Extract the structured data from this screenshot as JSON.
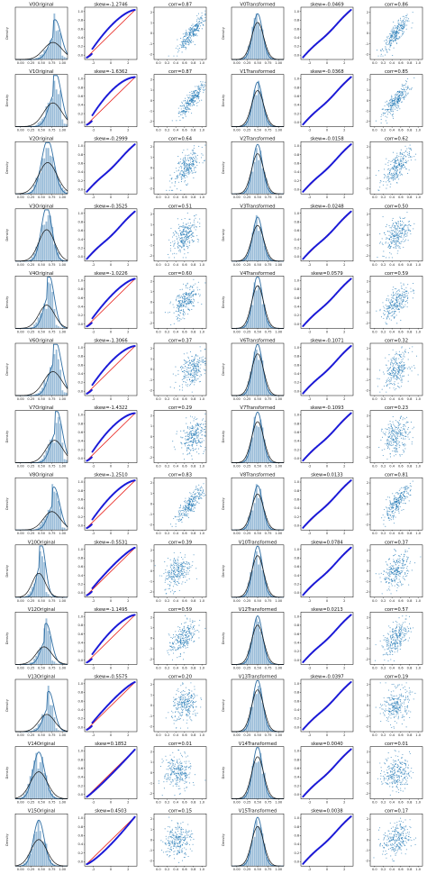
{
  "figure": {
    "rows": [
      {
        "var": "V0",
        "orig_title": "V0Original",
        "orig_skew": "skew=-1.2746",
        "orig_corr": "corr=0.87",
        "trans_title": "V0Transformed",
        "trans_skew": "skew=-0.0469",
        "trans_corr": "corr=0.86",
        "orig_center": 0.72,
        "orig_spread": 0.14,
        "orig_skew_value": -1.2746,
        "orig_corr_value": 0.87,
        "trans_skew_value": -0.0469,
        "trans_corr_value": 0.86
      },
      {
        "var": "V1",
        "orig_title": "V1Original",
        "orig_skew": "skew=-1.6362",
        "orig_corr": "corr=0.87",
        "trans_title": "V1Transformed",
        "trans_skew": "skew=-0.0368",
        "trans_corr": "corr=0.85",
        "orig_center": 0.72,
        "orig_spread": 0.14,
        "orig_skew_value": -1.6362,
        "orig_corr_value": 0.87,
        "trans_skew_value": -0.0368,
        "trans_corr_value": 0.85
      },
      {
        "var": "V2",
        "orig_title": "V2Original",
        "orig_skew": "skew=-0.2999",
        "orig_corr": "corr=0.64",
        "trans_title": "V2Transformed",
        "trans_skew": "skew=-0.0158",
        "trans_corr": "corr=0.62",
        "orig_center": 0.62,
        "orig_spread": 0.14,
        "orig_skew_value": -0.2999,
        "orig_corr_value": 0.64,
        "trans_skew_value": -0.0158,
        "trans_corr_value": 0.62
      },
      {
        "var": "V3",
        "orig_title": "V3Original",
        "orig_skew": "skew=-0.3525",
        "orig_corr": "corr=0.51",
        "trans_title": "V3Transformed",
        "trans_skew": "skew=-0.0248",
        "trans_corr": "corr=0.50",
        "orig_center": 0.6,
        "orig_spread": 0.12,
        "orig_skew_value": -0.3525,
        "orig_corr_value": 0.51,
        "trans_skew_value": -0.0248,
        "trans_corr_value": 0.5
      },
      {
        "var": "V4",
        "orig_title": "V4Original",
        "orig_skew": "skew=-1.0226",
        "orig_corr": "corr=0.60",
        "trans_title": "V4Transformed",
        "trans_skew": "skew=0.0579",
        "trans_corr": "corr=0.59",
        "orig_center": 0.6,
        "orig_spread": 0.12,
        "orig_skew_value": -1.0226,
        "orig_corr_value": 0.6,
        "trans_skew_value": 0.0579,
        "trans_corr_value": 0.59
      },
      {
        "var": "V6",
        "orig_title": "V6Original",
        "orig_skew": "skew=-1.3066",
        "orig_corr": "corr=0.37",
        "trans_title": "V6Transformed",
        "trans_skew": "skew=-0.1071",
        "trans_corr": "corr=0.32",
        "orig_center": 0.72,
        "orig_spread": 0.14,
        "orig_skew_value": -1.3066,
        "orig_corr_value": 0.37,
        "trans_skew_value": -0.1071,
        "trans_corr_value": 0.32
      },
      {
        "var": "V7",
        "orig_title": "V7Original",
        "orig_skew": "skew=-1.4322",
        "orig_corr": "corr=0.29",
        "trans_title": "V7Transformed",
        "trans_skew": "skew=-0.1093",
        "trans_corr": "corr=0.23",
        "orig_center": 0.75,
        "orig_spread": 0.13,
        "orig_skew_value": -1.4322,
        "orig_corr_value": 0.29,
        "trans_skew_value": -0.1093,
        "trans_corr_value": 0.23
      },
      {
        "var": "V8",
        "orig_title": "V8Original",
        "orig_skew": "skew=-1.2510",
        "orig_corr": "corr=0.83",
        "trans_title": "V8Transformed",
        "trans_skew": "skew=0.0133",
        "trans_corr": "corr=0.81",
        "orig_center": 0.7,
        "orig_spread": 0.13,
        "orig_skew_value": -1.251,
        "orig_corr_value": 0.83,
        "trans_skew_value": 0.0133,
        "trans_corr_value": 0.81
      },
      {
        "var": "V10",
        "orig_title": "V10Original",
        "orig_skew": "skew=-0.5531",
        "orig_corr": "corr=0.39",
        "trans_title": "V10Transformed",
        "trans_skew": "skew=0.0784",
        "trans_corr": "corr=0.37",
        "orig_center": 0.45,
        "orig_spread": 0.1,
        "orig_skew_value": -0.5531,
        "orig_corr_value": 0.39,
        "trans_skew_value": 0.0784,
        "trans_corr_value": 0.37
      },
      {
        "var": "V12",
        "orig_title": "V12Original",
        "orig_skew": "skew=-1.1495",
        "orig_corr": "corr=0.59",
        "trans_title": "V12Transformed",
        "trans_skew": "skew=0.0213",
        "trans_corr": "corr=0.57",
        "orig_center": 0.55,
        "orig_spread": 0.12,
        "orig_skew_value": -1.1495,
        "orig_corr_value": 0.59,
        "trans_skew_value": 0.0213,
        "trans_corr_value": 0.57
      },
      {
        "var": "V13",
        "orig_title": "V13Original",
        "orig_skew": "skew=-0.5575",
        "orig_corr": "corr=0.20",
        "trans_title": "V13Transformed",
        "trans_skew": "skew=-0.0397",
        "trans_corr": "corr=0.19",
        "orig_center": 0.6,
        "orig_spread": 0.12,
        "orig_skew_value": -0.5575,
        "orig_corr_value": 0.2,
        "trans_skew_value": -0.0397,
        "trans_corr_value": 0.19
      },
      {
        "var": "V14",
        "orig_title": "V14Original",
        "orig_skew": "skew=0.1852",
        "orig_corr": "corr=0.01",
        "trans_title": "V14Transformed",
        "trans_skew": "skew=0.0040",
        "trans_corr": "corr=0.01",
        "orig_center": 0.45,
        "orig_spread": 0.13,
        "orig_skew_value": 0.1852,
        "orig_corr_value": 0.01,
        "trans_skew_value": 0.004,
        "trans_corr_value": 0.01
      },
      {
        "var": "V15",
        "orig_title": "V15Original",
        "orig_skew": "skew=0.4503",
        "orig_corr": "corr=0.15",
        "trans_title": "V15Transformed",
        "trans_skew": "skew=0.0038",
        "trans_corr": "corr=0.17",
        "orig_center": 0.45,
        "orig_spread": 0.12,
        "orig_skew_value": 0.4503,
        "orig_corr_value": 0.15,
        "trans_skew_value": 0.0038,
        "trans_corr_value": 0.17
      }
    ],
    "density_ylabel": "Density",
    "orig_ticks": [
      "0.00",
      "0.25",
      "0.50",
      "0.75",
      "1.00"
    ],
    "trans_ticks": [
      "0.00",
      "0.25",
      "0.50",
      "0.75",
      "1.00"
    ],
    "qq_xticks": [
      "-2",
      "0",
      "2"
    ],
    "qq_yticks": [
      "0.0",
      "0.2",
      "0.4",
      "0.6",
      "0.8",
      "1.0"
    ],
    "scatter_xticks": [
      "0.0",
      "0.2",
      "0.4",
      "0.6",
      "0.8",
      "1.0"
    ],
    "scatter_yticks": [
      "-2",
      "-1",
      "0",
      "1",
      "2"
    ],
    "colors": {
      "hist": "#9bbdd9",
      "kde": "#2f6ea3",
      "norm": "#111111",
      "qq_points": "#1a1ad8",
      "qq_line": "#e8201a",
      "scatter": "#1f77b4"
    }
  },
  "chart_data": {
    "type": "figure-grid",
    "layout": {
      "rows": 13,
      "cols": 6,
      "panels_per_row": [
        "density (original)",
        "Q-Q plot (original)",
        "scatter vs target (original)",
        "density (transformed)",
        "Q-Q plot (transformed)",
        "scatter vs target (transformed)"
      ]
    },
    "series": [
      {
        "name": "V0",
        "orig_skew": -1.2746,
        "orig_corr": 0.87,
        "trans_skew": -0.0469,
        "trans_corr": 0.86
      },
      {
        "name": "V1",
        "orig_skew": -1.6362,
        "orig_corr": 0.87,
        "trans_skew": -0.0368,
        "trans_corr": 0.85
      },
      {
        "name": "V2",
        "orig_skew": -0.2999,
        "orig_corr": 0.64,
        "trans_skew": -0.0158,
        "trans_corr": 0.62
      },
      {
        "name": "V3",
        "orig_skew": -0.3525,
        "orig_corr": 0.51,
        "trans_skew": -0.0248,
        "trans_corr": 0.5
      },
      {
        "name": "V4",
        "orig_skew": -1.0226,
        "orig_corr": 0.6,
        "trans_skew": 0.0579,
        "trans_corr": 0.59
      },
      {
        "name": "V6",
        "orig_skew": -1.3066,
        "orig_corr": 0.37,
        "trans_skew": -0.1071,
        "trans_corr": 0.32
      },
      {
        "name": "V7",
        "orig_skew": -1.4322,
        "orig_corr": 0.29,
        "trans_skew": -0.1093,
        "trans_corr": 0.23
      },
      {
        "name": "V8",
        "orig_skew": -1.251,
        "orig_corr": 0.83,
        "trans_skew": 0.0133,
        "trans_corr": 0.81
      },
      {
        "name": "V10",
        "orig_skew": -0.5531,
        "orig_corr": 0.39,
        "trans_skew": 0.0784,
        "trans_corr": 0.37
      },
      {
        "name": "V12",
        "orig_skew": -1.1495,
        "orig_corr": 0.59,
        "trans_skew": 0.0213,
        "trans_corr": 0.57
      },
      {
        "name": "V13",
        "orig_skew": -0.5575,
        "orig_corr": 0.2,
        "trans_skew": -0.0397,
        "trans_corr": 0.19
      },
      {
        "name": "V14",
        "orig_skew": 0.1852,
        "orig_corr": 0.01,
        "trans_skew": 0.004,
        "trans_corr": 0.01
      },
      {
        "name": "V15",
        "orig_skew": 0.4503,
        "orig_corr": 0.15,
        "trans_skew": 0.0038,
        "trans_corr": 0.17
      }
    ],
    "x_range_density": [
      0,
      1
    ],
    "qq_x_range": [
      -3,
      3
    ],
    "qq_y_range": [
      0,
      1
    ],
    "scatter_x_range": [
      0,
      1
    ],
    "scatter_y_range": [
      -3,
      3
    ]
  }
}
